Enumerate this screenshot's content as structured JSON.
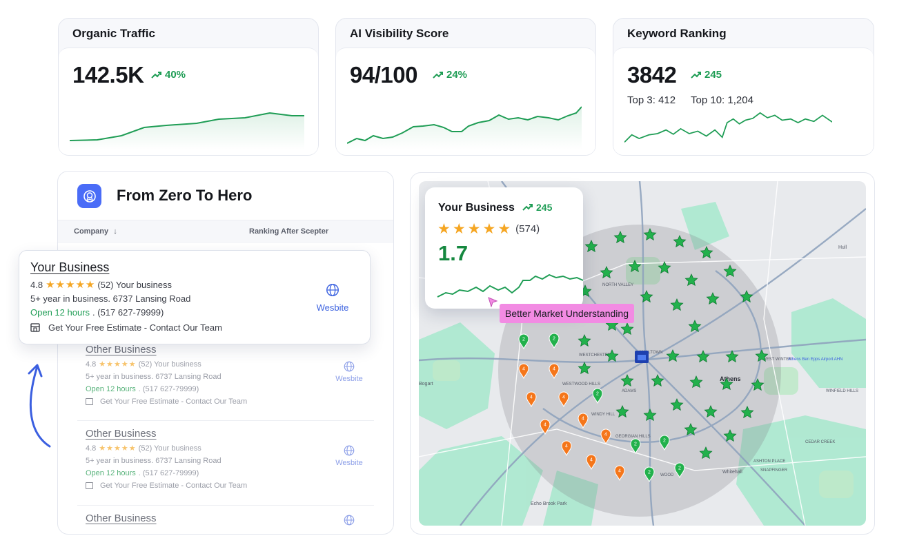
{
  "colors": {
    "accent_green": "#1f9d55",
    "brand_blue": "#4a6cf7",
    "star": "#f5a623",
    "tooltip_pink": "#f28be3",
    "map_green_marker": "#22b14c",
    "map_orange_marker": "#f5761a"
  },
  "kpis": [
    {
      "title": "Organic Traffic",
      "value": "142.5K",
      "delta": "40%",
      "icon": "trend-up-icon"
    },
    {
      "title": "AI Visibility Score",
      "value": "94/100",
      "delta": "24%",
      "icon": "trend-up-icon"
    },
    {
      "title": "Keyword Ranking",
      "value": "3842",
      "delta": "245",
      "top3": "Top 3: 412",
      "top10": "Top 10: 1,204",
      "icon": "trend-up-icon"
    }
  ],
  "panel": {
    "title": "From Zero To Hero",
    "icon": "award-badge-icon",
    "col_company": "Company",
    "col_ranking": "Ranking After Scepter"
  },
  "featured": {
    "name": "Your Business",
    "rating": "4.8",
    "reviews": "(52) Your business",
    "desc": "5+ year in business. 6737 Lansing Road",
    "open": "Open 12 hours",
    "phone": ". (517 627-79999)",
    "cta": "Get Your Free Estimate - Contact Our Team",
    "website": "Wesbite"
  },
  "listings": [
    {
      "name": "Other Business",
      "rating": "4.8",
      "reviews": "(52) Your business",
      "desc": "5+ year in business. 6737 Lansing Road",
      "open": "Open 12 hours",
      "phone": ". (517 627-79999)",
      "cta": "Get Your Free Estimate - Contact Our Team",
      "website": "Wesbite"
    },
    {
      "name": "Other Business",
      "rating": "4.8",
      "reviews": "(52) Your business",
      "desc": "5+ year in business. 6737 Lansing Road",
      "open": "Open 12 hours",
      "phone": ". (517 627-79999)",
      "cta": "Get Your Free Estimate - Contact Our Team",
      "website": "Wesbite"
    },
    {
      "name": "Other Business"
    }
  ],
  "map_card": {
    "name": "Your Business",
    "delta": "245",
    "reviews": "(574)",
    "score": "1.7",
    "tooltip": "Better Market Understanding"
  },
  "map_labels": {
    "north_valley": "NORTH VALLEY",
    "westchester": "WESTCHESTER",
    "westwood": "WESTWOOD HILLS",
    "adams": "ADAMS",
    "windy": "WINDY HILL",
    "georgian": "GEORGIAN HILLS",
    "athens": "Athens",
    "airport": "Athens Ben Epps Airport AHN",
    "west_winter": "WEST WINTER",
    "winfield": "WINFIELD HILLS",
    "cedar": "CEDAR CREEK",
    "ashton": "ASHTON PLACE",
    "snapfinger": "SNAPFINGER",
    "whitehall": "Whitehall",
    "echo": "Echo Brook Park",
    "bogart": "Bogart",
    "malltown": "MALLTOWN",
    "wood": "WOOD",
    "hull": "Hull"
  }
}
